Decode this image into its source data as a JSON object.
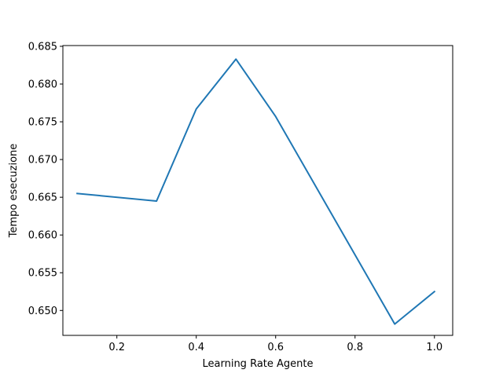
{
  "chart_data": {
    "type": "line",
    "title": "",
    "xlabel": "Learning Rate Agente",
    "ylabel": "Tempo esecuzione",
    "xlim": [
      0.064,
      1.046
    ],
    "ylim": [
      0.6467,
      0.6851
    ],
    "xticks": [
      0.2,
      0.4,
      0.6,
      0.8,
      1.0
    ],
    "xtick_labels": [
      "0.2",
      "0.4",
      "0.6",
      "0.8",
      "1.0"
    ],
    "yticks": [
      0.65,
      0.655,
      0.66,
      0.665,
      0.67,
      0.675,
      0.68,
      0.685
    ],
    "ytick_labels": [
      "0.650",
      "0.655",
      "0.660",
      "0.665",
      "0.670",
      "0.675",
      "0.680",
      "0.685"
    ],
    "grid": false,
    "series": [
      {
        "color": "#1f77b4",
        "x": [
          0.1,
          0.3,
          0.4,
          0.5,
          0.6,
          0.9,
          1.0
        ],
        "y": [
          0.6655,
          0.6645,
          0.6767,
          0.6833,
          0.6757,
          0.6482,
          0.6525
        ]
      }
    ]
  }
}
